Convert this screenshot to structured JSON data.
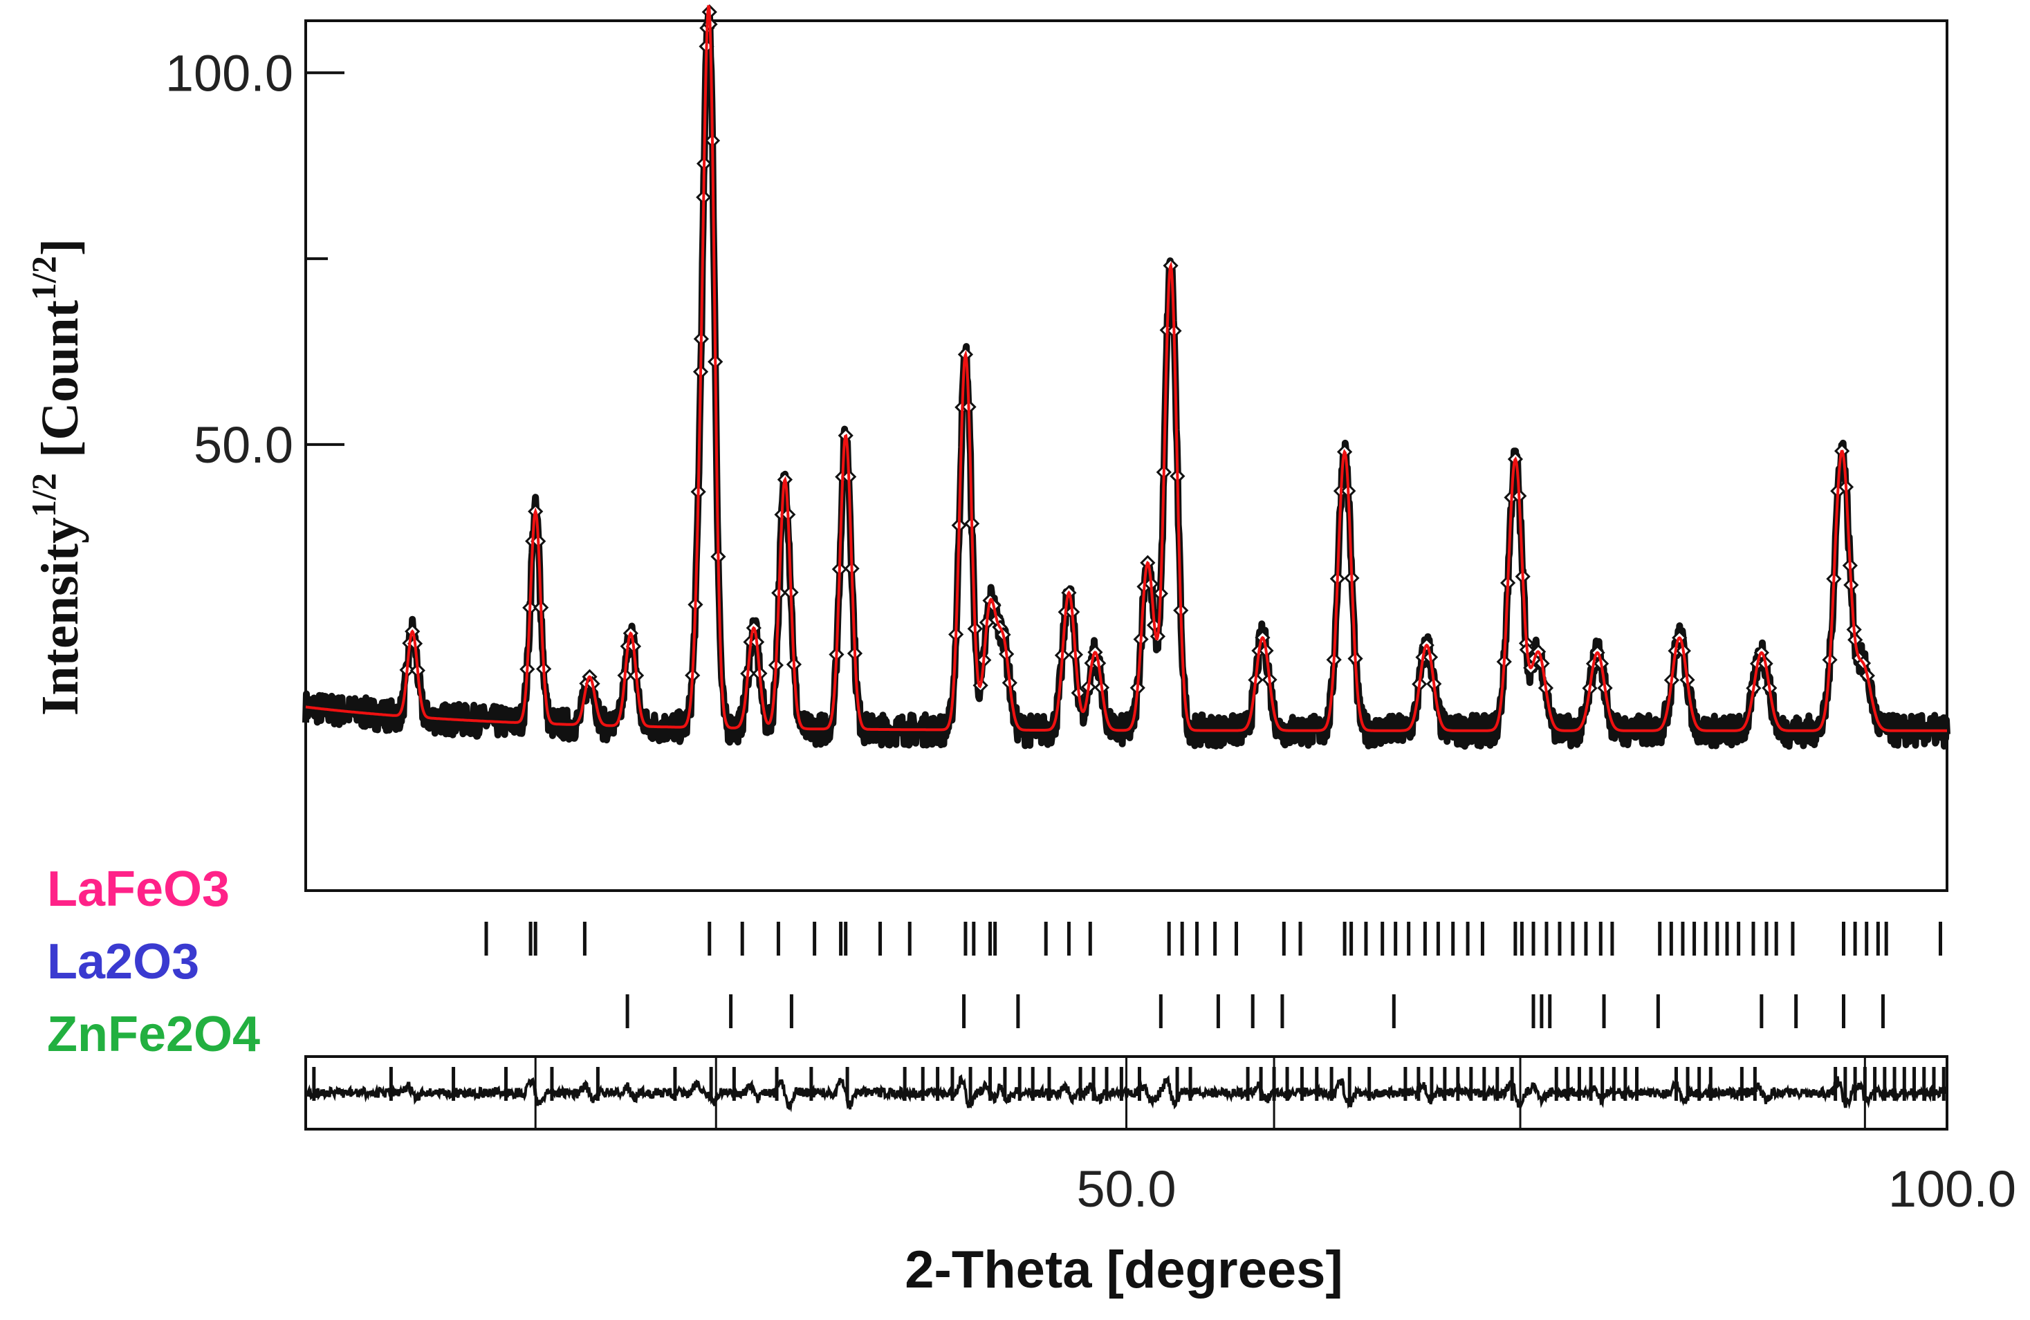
{
  "chart_data": {
    "type": "line",
    "xlabel": "2-Theta [degrees]",
    "ylabel_main": "Intensity",
    "ylabel_sup": "1/2",
    "ylabel_unit_open": "[Count",
    "ylabel_unit_sup": "1/2",
    "ylabel_unit_close": "]",
    "xlim": [
      0,
      100
    ],
    "ylim": [
      -10,
      107
    ],
    "x_tick_labels": [
      {
        "value": 50,
        "label": "50.0"
      },
      {
        "value": 100,
        "label": "100.0"
      }
    ],
    "y_tick_labels": [
      {
        "value": 50,
        "label": "50.0"
      },
      {
        "value": 100,
        "label": "100.0"
      }
    ],
    "y_minor_ticks": [
      75
    ],
    "x_divisions": [
      0,
      14,
      25,
      50,
      59,
      74,
      95,
      100
    ],
    "background_level": 11.5,
    "peaks": [
      {
        "x": 6.5,
        "y": 23
      },
      {
        "x": 14.0,
        "y": 40
      },
      {
        "x": 17.3,
        "y": 18
      },
      {
        "x": 19.8,
        "y": 24
      },
      {
        "x": 24.1,
        "y": 37
      },
      {
        "x": 24.6,
        "y": 100
      },
      {
        "x": 27.3,
        "y": 25
      },
      {
        "x": 29.2,
        "y": 45
      },
      {
        "x": 32.9,
        "y": 51
      },
      {
        "x": 40.2,
        "y": 62
      },
      {
        "x": 41.7,
        "y": 28
      },
      {
        "x": 42.5,
        "y": 23
      },
      {
        "x": 46.5,
        "y": 30
      },
      {
        "x": 48.1,
        "y": 22
      },
      {
        "x": 51.3,
        "y": 34
      },
      {
        "x": 52.7,
        "y": 74
      },
      {
        "x": 58.3,
        "y": 24
      },
      {
        "x": 63.3,
        "y": 49
      },
      {
        "x": 68.3,
        "y": 23
      },
      {
        "x": 73.7,
        "y": 48
      },
      {
        "x": 75.1,
        "y": 22
      },
      {
        "x": 78.7,
        "y": 22
      },
      {
        "x": 83.7,
        "y": 24
      },
      {
        "x": 88.7,
        "y": 22
      },
      {
        "x": 93.6,
        "y": 49
      },
      {
        "x": 94.9,
        "y": 20
      }
    ],
    "phases": [
      {
        "name": "LaFeO3",
        "color": "#ff2288",
        "reflections": [
          11.0,
          13.7,
          14.0,
          17.0,
          24.6,
          26.6,
          28.8,
          31.0,
          32.6,
          32.9,
          35.0,
          36.8,
          40.2,
          40.7,
          41.7,
          42.0,
          45.1,
          46.5,
          47.8,
          52.6,
          53.4,
          54.3,
          55.4,
          56.7,
          59.6,
          60.6,
          63.3,
          63.7,
          64.6,
          65.6,
          66.4,
          67.2,
          68.2,
          69.0,
          69.9,
          70.8,
          71.7,
          73.7,
          74.1,
          74.8,
          75.6,
          76.4,
          77.2,
          78.0,
          78.9,
          79.6,
          82.5,
          83.2,
          83.9,
          84.6,
          85.3,
          86.0,
          86.6,
          87.3,
          88.2,
          89.0,
          89.6,
          90.6,
          93.7,
          94.4,
          95.1,
          95.8,
          96.3,
          99.6
        ]
      },
      {
        "name": "La2O3",
        "color": "#3a3ad0",
        "reflections": [
          19.6,
          25.9,
          29.6,
          40.1,
          43.4,
          52.1,
          55.6,
          57.7,
          59.5,
          66.3,
          74.8,
          75.3,
          75.8,
          79.1,
          82.4,
          88.7,
          90.8,
          93.7,
          96.1
        ]
      },
      {
        "name": "ZnFe2O4",
        "color": "#22b040",
        "reflections": [
          0.5,
          5.2,
          9.0,
          12.2,
          15.0,
          17.8,
          22.5,
          24.7,
          26.1,
          28.7,
          30.8,
          33.0,
          36.5,
          37.6,
          38.5,
          39.4,
          40.5,
          41.7,
          42.6,
          43.5,
          44.3,
          45.3,
          47.2,
          48.0,
          48.8,
          49.7,
          50.8,
          53.1,
          53.9,
          57.4,
          58.2,
          59.0,
          59.8,
          60.7,
          61.6,
          62.5,
          63.6,
          64.8,
          67.0,
          67.8,
          68.6,
          69.4,
          70.2,
          71.0,
          71.8,
          72.6,
          73.5,
          76.2,
          76.9,
          77.6,
          78.3,
          79.0,
          79.7,
          80.4,
          81.1,
          83.5,
          84.2,
          84.9,
          85.6,
          87.5,
          88.3,
          93.2,
          93.8,
          94.4,
          95.0,
          95.6,
          96.2,
          96.8,
          97.4,
          98.0,
          98.6,
          99.2,
          99.8
        ]
      }
    ]
  }
}
